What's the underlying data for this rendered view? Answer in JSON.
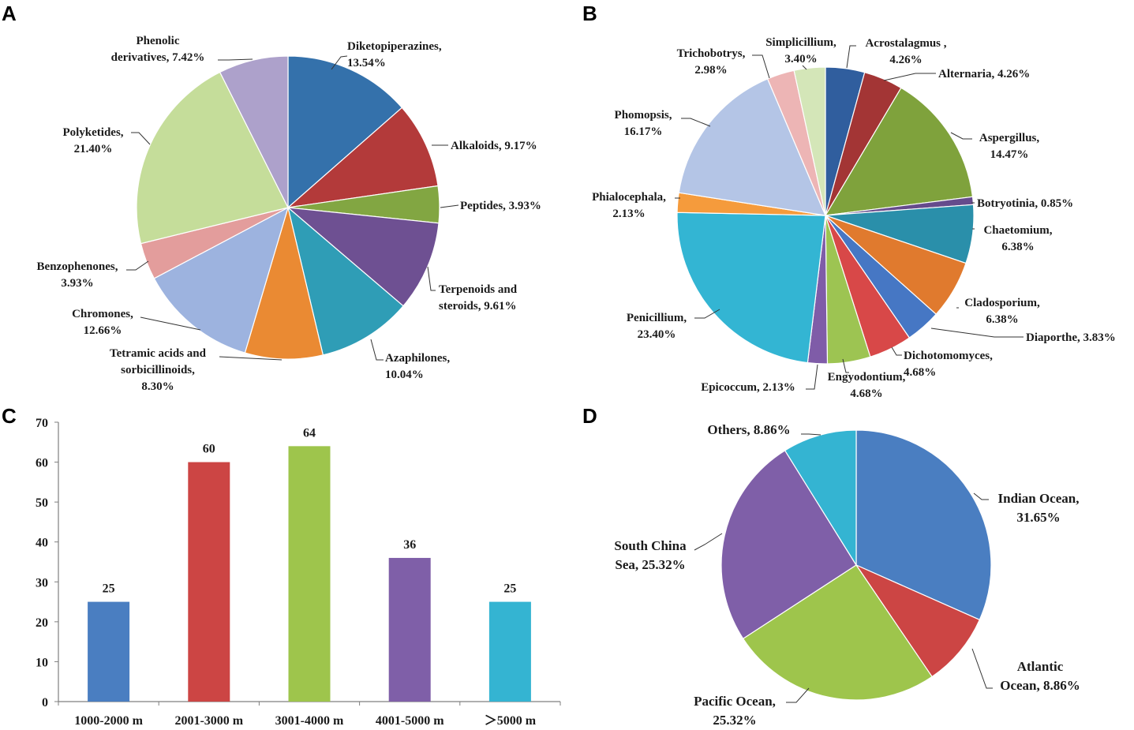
{
  "panel_labels": [
    "A",
    "B",
    "C",
    "D"
  ],
  "chart_data": [
    {
      "panel": "A",
      "type": "pie",
      "series": [
        {
          "name": "Diketopiperazines",
          "value": 13.54,
          "label": [
            "Diketopiperazines,",
            "13.54%"
          ],
          "color": "#3471AB"
        },
        {
          "name": "Alkaloids",
          "value": 9.17,
          "label": [
            "Alkaloids, 9.17%"
          ],
          "color": "#B33A3A"
        },
        {
          "name": "Peptides",
          "value": 3.93,
          "label": [
            "Peptides, 3.93%"
          ],
          "color": "#82A642"
        },
        {
          "name": "Terpenoids and steroids",
          "value": 9.61,
          "label": [
            "Terpenoids and",
            "steroids, 9.61%"
          ],
          "color": "#6E5092"
        },
        {
          "name": "Azaphilones",
          "value": 10.04,
          "label": [
            "Azaphilones,",
            "10.04%"
          ],
          "color": "#2F9DB6"
        },
        {
          "name": "Tetramic acids and sorbicillinoids",
          "value": 8.3,
          "label": [
            "Tetramic acids and",
            "sorbicillinoids,",
            "8.30%"
          ],
          "color": "#EA8A33"
        },
        {
          "name": "Chromones",
          "value": 12.66,
          "label": [
            "Chromones,",
            "12.66%"
          ],
          "color": "#9DB3DF"
        },
        {
          "name": "Benzophenones",
          "value": 3.93,
          "label": [
            "Benzophenones,",
            "3.93%"
          ],
          "color": "#E39D9C"
        },
        {
          "name": "Polyketides",
          "value": 21.4,
          "label": [
            "Polyketides,",
            "21.40%"
          ],
          "color": "#C5DD9A"
        },
        {
          "name": "Phenolic derivatives",
          "value": 7.42,
          "label": [
            "Phenolic",
            "derivatives, 7.42%"
          ],
          "color": "#ADA1CB"
        }
      ]
    },
    {
      "panel": "B",
      "type": "pie",
      "series": [
        {
          "name": "Acrostalagmus",
          "value": 4.26,
          "label": [
            "Acrostalagmus ,",
            "4.26%"
          ],
          "color": "#305E9E"
        },
        {
          "name": "Alternaria",
          "value": 4.26,
          "label": [
            "Alternaria, 4.26%"
          ],
          "color": "#A33535"
        },
        {
          "name": "Aspergillus",
          "value": 14.47,
          "label": [
            "Aspergillus,",
            "14.47%"
          ],
          "color": "#7FA23C"
        },
        {
          "name": "Botryotinia",
          "value": 0.85,
          "label": [
            "Botryotinia, 0.85%"
          ],
          "color": "#654B8C"
        },
        {
          "name": "Chaetomium",
          "value": 6.38,
          "label": [
            "Chaetomium,",
            "6.38%"
          ],
          "color": "#2A8FAA"
        },
        {
          "name": "Cladosporium",
          "value": 6.38,
          "label": [
            "Cladosporium,",
            "6.38%"
          ],
          "color": "#E07A2E"
        },
        {
          "name": "Diaporthe",
          "value": 3.83,
          "label": [
            "Diaporthe, 3.83%"
          ],
          "color": "#4677C4"
        },
        {
          "name": "Dichotomomyces",
          "value": 4.68,
          "label": [
            "Dichotomomyces,",
            "4.68%"
          ],
          "color": "#D84848"
        },
        {
          "name": "Engyodontium",
          "value": 4.68,
          "label": [
            "Engyodontium,",
            "4.68%"
          ],
          "color": "#9DC452"
        },
        {
          "name": "Epicoccum",
          "value": 2.13,
          "label": [
            "Epicoccum, 2.13%"
          ],
          "color": "#7F5CA8"
        },
        {
          "name": "Penicillium",
          "value": 23.4,
          "label": [
            "Penicillium,",
            "23.40%"
          ],
          "color": "#33B5D3"
        },
        {
          "name": "Phialocephala",
          "value": 2.13,
          "label": [
            "Phialocephala,",
            "2.13%"
          ],
          "color": "#F59B3C"
        },
        {
          "name": "Phomopsis",
          "value": 16.17,
          "label": [
            "Phomopsis,",
            "16.17%"
          ],
          "color": "#B4C5E6"
        },
        {
          "name": "Trichobotrys",
          "value": 2.98,
          "label": [
            "Trichobotrys,",
            "2.98%"
          ],
          "color": "#EDB5B5"
        },
        {
          "name": "Simplicillium",
          "value": 3.4,
          "label": [
            "Simplicillium,",
            "3.40%"
          ],
          "color": "#D4E6B8"
        }
      ]
    },
    {
      "panel": "C",
      "type": "bar",
      "categories": [
        "1000-2000 m",
        "2001-3000 m",
        "3001-4000 m",
        "4001-5000 m",
        "＞5000 m"
      ],
      "values": [
        25,
        60,
        64,
        36,
        25
      ],
      "colors": [
        "#4A7EC1",
        "#CC4544",
        "#9EC54C",
        "#7F5FA8",
        "#34B4D2"
      ],
      "ylim": [
        0,
        70
      ],
      "yticks": [
        0,
        10,
        20,
        30,
        40,
        50,
        60,
        70
      ],
      "title": "",
      "xlabel": "",
      "ylabel": ""
    },
    {
      "panel": "D",
      "type": "pie",
      "series": [
        {
          "name": "Indian Ocean",
          "value": 31.65,
          "label": [
            "Indian Ocean,",
            "31.65%"
          ],
          "color": "#4A7EC1"
        },
        {
          "name": "Atlantic Ocean",
          "value": 8.86,
          "label": [
            "Atlantic",
            "Ocean, 8.86%"
          ],
          "color": "#CC4544"
        },
        {
          "name": "Pacific Ocean",
          "value": 25.32,
          "label": [
            "Pacific Ocean,",
            "25.32%"
          ],
          "color": "#9EC54C"
        },
        {
          "name": "South China Sea",
          "value": 25.32,
          "label": [
            "South China",
            "Sea, 25.32%"
          ],
          "color": "#7F5FA8"
        },
        {
          "name": "Others",
          "value": 8.86,
          "label": [
            "Others, 8.86%"
          ],
          "color": "#34B4D2"
        }
      ]
    }
  ]
}
